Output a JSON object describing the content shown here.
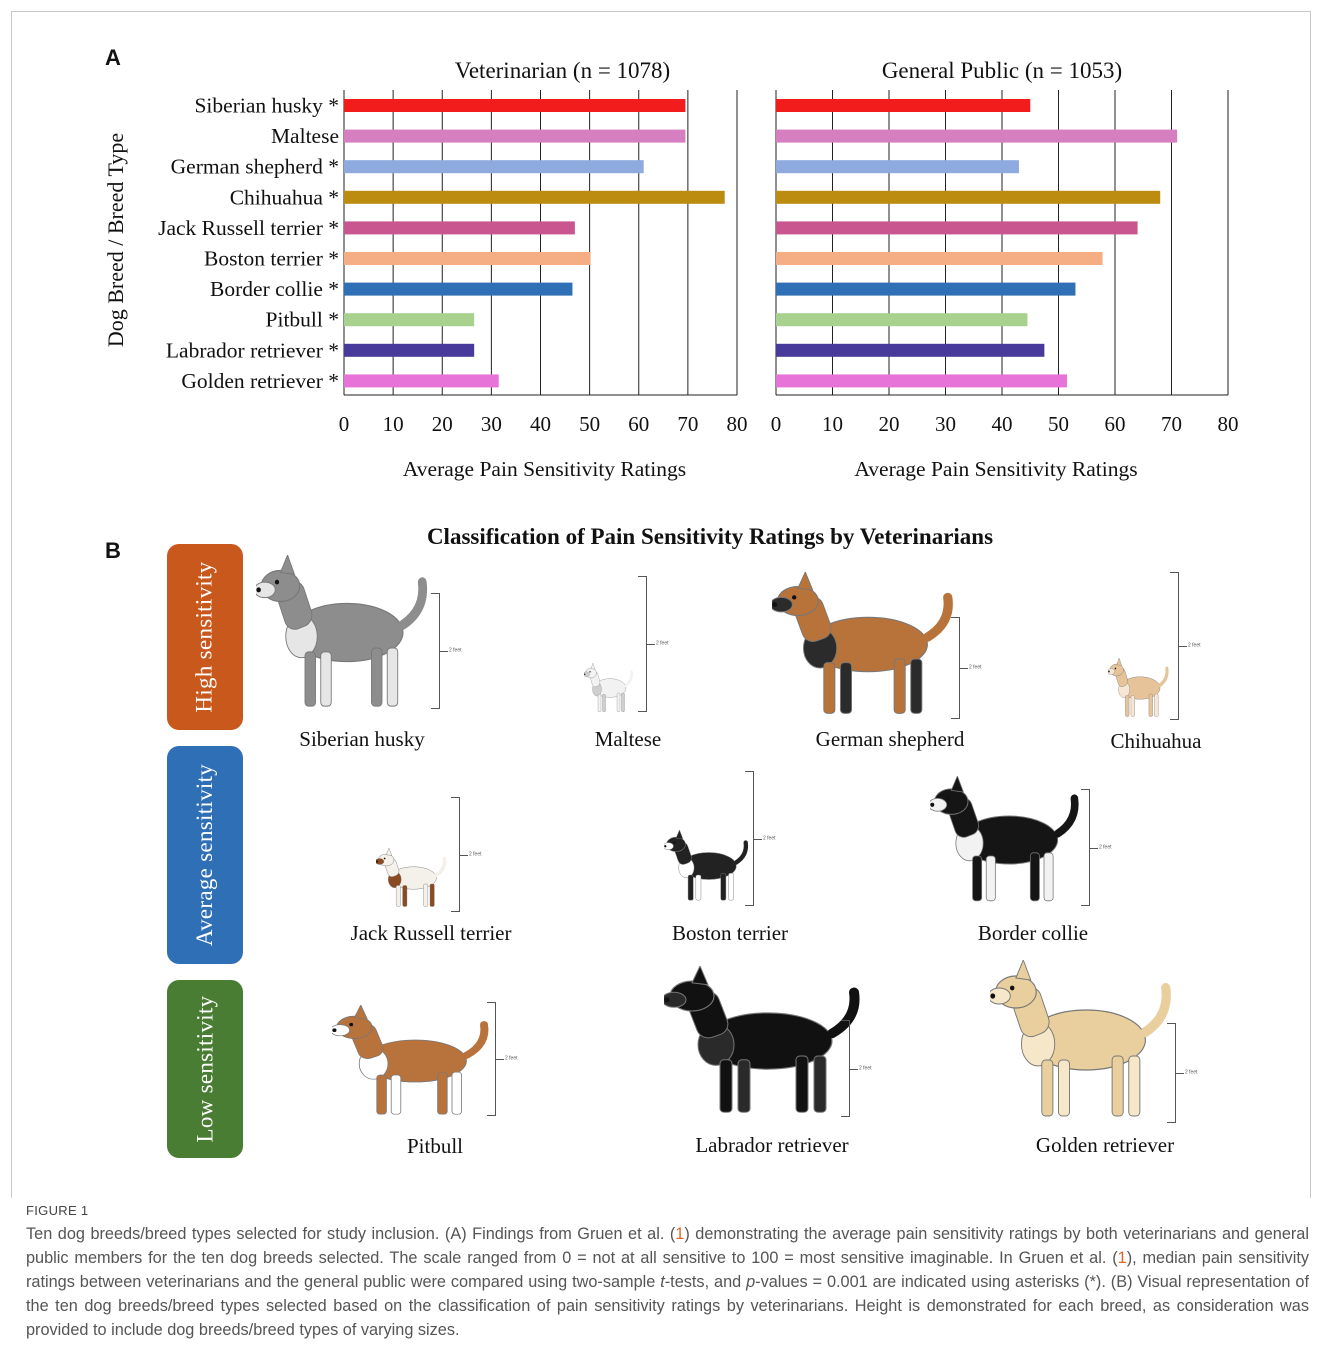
{
  "panel_a_label": "A",
  "panel_b_label": "B",
  "chart_data": [
    {
      "type": "bar",
      "orientation": "horizontal",
      "title": "Veterinarian (n = 1078)",
      "xlabel": "Average Pain Sensitivity Ratings",
      "ylabel": "Dog Breed / Breed Type",
      "xlim": [
        0,
        80
      ],
      "xticks": [
        "0",
        "10",
        "20",
        "30",
        "40",
        "50",
        "60",
        "70",
        "80"
      ],
      "grid": "vertical",
      "categories": [
        "Siberian husky *",
        "Maltese",
        "German shepherd *",
        "Chihuahua *",
        "Jack Russell terrier *",
        "Boston terrier *",
        "Border collie *",
        "Pitbull *",
        "Labrador retriever *",
        "Golden retriever *"
      ],
      "values": [
        69.5,
        69.5,
        61,
        77.5,
        47,
        50.2,
        46.5,
        26.5,
        26.5,
        31.5
      ],
      "colors": [
        "#f21c1c",
        "#d67fc0",
        "#8eaadf",
        "#bb8c10",
        "#c9568f",
        "#f5ad84",
        "#2f6fb5",
        "#a9d18e",
        "#473a9a",
        "#e773d9"
      ]
    },
    {
      "type": "bar",
      "orientation": "horizontal",
      "title": "General Public (n = 1053)",
      "xlabel": "Average Pain Sensitivity Ratings",
      "xlim": [
        0,
        80
      ],
      "xticks": [
        "0",
        "10",
        "20",
        "30",
        "40",
        "50",
        "60",
        "70",
        "80"
      ],
      "grid": "vertical",
      "categories": [
        "Siberian husky",
        "Maltese",
        "German shepherd",
        "Chihuahua",
        "Jack Russell terrier",
        "Boston terrier",
        "Border collie",
        "Pitbull",
        "Labrador retriever",
        "Golden retriever"
      ],
      "values": [
        45,
        71,
        43,
        68,
        64,
        57.8,
        53,
        44.5,
        47.5,
        51.5
      ],
      "colors": [
        "#f21c1c",
        "#d67fc0",
        "#8eaadf",
        "#bb8c10",
        "#c9568f",
        "#f5ad84",
        "#2f6fb5",
        "#a9d18e",
        "#473a9a",
        "#e773d9"
      ]
    }
  ],
  "panel_b": {
    "title": "Classification of Pain Sensitivity Ratings by Veterinarians",
    "height_label": "2 feet",
    "groups": [
      {
        "label": "High sensitivity",
        "color": "#c9581d"
      },
      {
        "label": "Average sensitivity",
        "color": "#2f6fb5"
      },
      {
        "label": "Low sensitivity",
        "color": "#4a7d34"
      }
    ],
    "dogs": [
      {
        "name": "Siberian husky",
        "coat": "#8d8d8d",
        "accent": "#e6e6e6"
      },
      {
        "name": "Maltese",
        "coat": "#f2f2f2",
        "accent": "#cfcfcf"
      },
      {
        "name": "German shepherd",
        "coat": "#b8733a",
        "accent": "#2b2b2b"
      },
      {
        "name": "Chihuahua",
        "coat": "#e7c39a",
        "accent": "#f6e6d3"
      },
      {
        "name": "Jack Russell terrier",
        "coat": "#f4f0ea",
        "accent": "#8a4a22"
      },
      {
        "name": "Boston terrier",
        "coat": "#222222",
        "accent": "#ffffff"
      },
      {
        "name": "Border collie",
        "coat": "#151515",
        "accent": "#f2f2f2"
      },
      {
        "name": "Pitbull",
        "coat": "#b8733d",
        "accent": "#ffffff"
      },
      {
        "name": "Labrador retriever",
        "coat": "#111111",
        "accent": "#2a2a2a"
      },
      {
        "name": "Golden retriever",
        "coat": "#e9cf9e",
        "accent": "#f5e7c7"
      }
    ]
  },
  "caption": {
    "label": "FIGURE 1",
    "text_1": "Ten dog breeds/breed types selected for study inclusion. (",
    "a": "A",
    "text_2": ") Findings from Gruen et al. (",
    "ref1": "1",
    "text_3": ") demonstrating the average pain sensitivity ratings by both veterinarians and general public members for the ten dog breeds selected. The scale ranged from 0 = not at all sensitive to 100 = most sensitive imaginable. In Gruen et al. (",
    "ref2": "1",
    "text_4": "), median pain sensitivity ratings between veterinarians and the general public were compared using two-sample ",
    "t": "t",
    "text_5": "-tests, and ",
    "p": "p",
    "text_6": "-values = 0.001 are indicated using asterisks (*). (",
    "b": "B",
    "text_7": ") Visual representation of the ten dog breeds/breed types selected based on the classification of pain sensitivity ratings by veterinarians. Height is demonstrated for each breed, as consideration was provided to include dog breeds/breed types of varying sizes."
  }
}
